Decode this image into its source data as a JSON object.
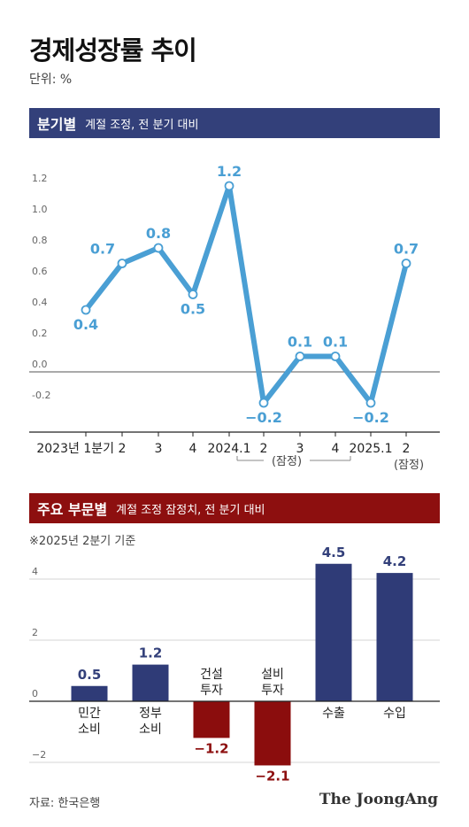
{
  "title": "경제성장률 추이",
  "unit": "단위: %",
  "source": "자료: 한국은행",
  "brand": "The JoongAng",
  "section1": {
    "label": "분기별",
    "sub": "계절 조정, 전 분기 대비"
  },
  "section2": {
    "label": "주요 부문별",
    "sub": "계절 조정 잠정치, 전 분기 대비",
    "note": "※2025년 2분기 기준"
  },
  "colors": {
    "line": "#4a9fd4",
    "navy": "#33407a",
    "red": "#8d0f0f",
    "bar_navy": "#2f3b77",
    "bar_red": "#8b0d0d"
  },
  "chart_data": [
    {
      "type": "line",
      "categories": [
        "2023년 1분기",
        "2",
        "3",
        "4",
        "2024.1",
        "2",
        "3",
        "4",
        "2025.1",
        "2"
      ],
      "values": [
        0.4,
        0.7,
        0.8,
        0.5,
        1.2,
        -0.2,
        0.1,
        0.1,
        -0.2,
        0.7
      ],
      "data_labels": [
        "0.4",
        "0.7",
        "0.8",
        "0.5",
        "1.2",
        "−0.2",
        "0.1",
        "0.1",
        "−0.2",
        "0.7"
      ],
      "yticks": [
        "1.2",
        "1.0",
        "0.8",
        "0.6",
        "0.4",
        "0.2",
        "0.0",
        "-0.2"
      ],
      "ytick_values": [
        1.2,
        1.0,
        0.8,
        0.6,
        0.4,
        0.2,
        0.0,
        -0.2
      ],
      "prelim_label": "(잠정)",
      "ylim": [
        -0.2,
        1.2
      ],
      "grid": false
    },
    {
      "type": "bar",
      "categories": [
        "민간\n소비",
        "정부\n소비",
        "건설\n투자",
        "설비\n투자",
        "수출",
        "수입"
      ],
      "values": [
        0.5,
        1.2,
        -1.2,
        -2.1,
        4.5,
        4.2
      ],
      "data_labels": [
        "0.5",
        "1.2",
        "−1.2",
        "−2.1",
        "4.5",
        "4.2"
      ],
      "yticks": [
        "4",
        "2",
        "0",
        "−2"
      ],
      "ytick_values": [
        4,
        2,
        0,
        -2
      ],
      "ylim": [
        -2.1,
        4.5
      ],
      "grid": true
    }
  ]
}
